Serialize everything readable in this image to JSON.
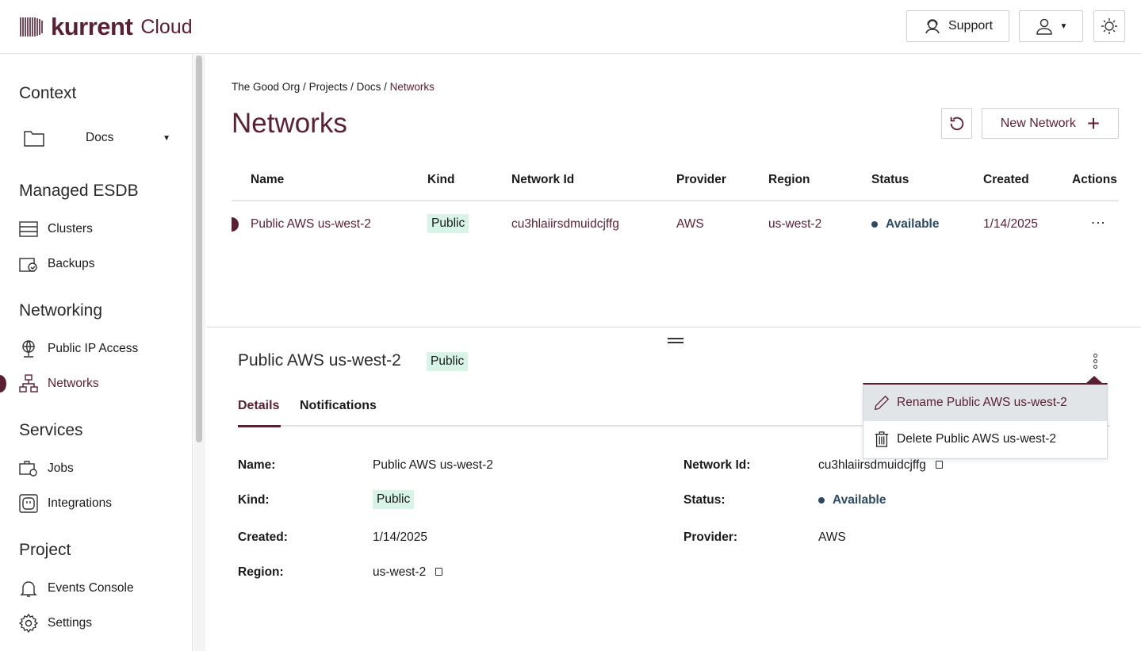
{
  "header": {
    "logo_text": "kurrent",
    "logo_suffix": "Cloud",
    "support_label": "Support"
  },
  "sidebar": {
    "context_title": "Context",
    "project_select": "Docs",
    "sections": [
      {
        "title": "Managed ESDB",
        "items": [
          {
            "label": "Clusters",
            "icon": "server-icon"
          },
          {
            "label": "Backups",
            "icon": "backup-icon"
          }
        ]
      },
      {
        "title": "Networking",
        "items": [
          {
            "label": "Public IP Access",
            "icon": "globe-icon"
          },
          {
            "label": "Networks",
            "icon": "network-icon",
            "active": true
          }
        ]
      },
      {
        "title": "Services",
        "items": [
          {
            "label": "Jobs",
            "icon": "jobs-icon"
          },
          {
            "label": "Integrations",
            "icon": "plug-icon"
          }
        ]
      },
      {
        "title": "Project",
        "items": [
          {
            "label": "Events Console",
            "icon": "bell-icon"
          },
          {
            "label": "Settings",
            "icon": "gear-icon"
          }
        ]
      }
    ]
  },
  "breadcrumb": [
    "The Good Org",
    "Projects",
    "Docs",
    "Networks"
  ],
  "page_title": "Networks",
  "new_network_label": "New Network",
  "table": {
    "headers": [
      "Name",
      "Kind",
      "Network Id",
      "Provider",
      "Region",
      "Status",
      "Created",
      "Actions"
    ],
    "rows": [
      {
        "name": "Public AWS us-west-2",
        "kind": "Public",
        "network_id": "cu3hlaiirsdmuidcjffg",
        "provider": "AWS",
        "region": "us-west-2",
        "status": "Available",
        "created": "1/14/2025"
      }
    ]
  },
  "detail": {
    "title": "Public AWS us-west-2",
    "kind_badge": "Public",
    "tabs": [
      "Details",
      "Notifications"
    ],
    "menu": [
      "Rename Public AWS us-west-2",
      "Delete Public AWS us-west-2"
    ],
    "fields": {
      "name_label": "Name:",
      "name": "Public AWS us-west-2",
      "kind_label": "Kind:",
      "kind": "Public",
      "created_label": "Created:",
      "created": "1/14/2025",
      "region_label": "Region:",
      "region": "us-west-2",
      "network_id_label": "Network Id:",
      "network_id": "cu3hlaiirsdmuidcjffg",
      "status_label": "Status:",
      "status": "Available",
      "provider_label": "Provider:",
      "provider": "AWS"
    }
  },
  "colors": {
    "brand": "#5a1f33",
    "badge_bg": "#d8f3e8",
    "status": "#2d4a62"
  }
}
